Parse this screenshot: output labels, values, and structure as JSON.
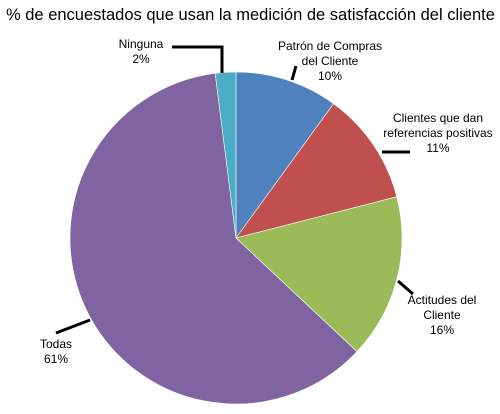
{
  "chart_data": {
    "type": "pie",
    "title": "% de encuestados que usan la medición de satisfacción del cliente",
    "slices": [
      {
        "label_lines": [
          "Patrón de Compras",
          "del Cliente"
        ],
        "pct_label": "10%",
        "value": 10,
        "color": "#4f81bd"
      },
      {
        "label_lines": [
          "Clientes que dan",
          "referencias positivas"
        ],
        "pct_label": "11%",
        "value": 11,
        "color": "#c0504d"
      },
      {
        "label_lines": [
          "Actitudes del",
          "Cliente"
        ],
        "pct_label": "16%",
        "value": 16,
        "color": "#9bbb59"
      },
      {
        "label_lines": [
          "Todas"
        ],
        "pct_label": "61%",
        "value": 61,
        "color": "#8064a2"
      },
      {
        "label_lines": [
          "Ninguna"
        ],
        "pct_label": "2%",
        "value": 2,
        "color": "#4bacc6"
      }
    ]
  }
}
